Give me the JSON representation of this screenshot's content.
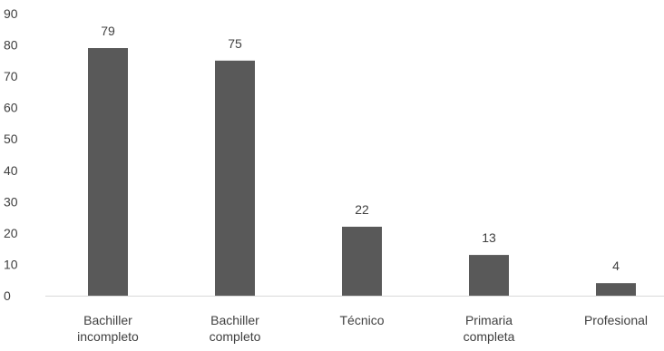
{
  "chart_data": {
    "type": "bar",
    "categories": [
      [
        "Bachiller",
        "incompleto"
      ],
      [
        "Bachiller",
        "completo"
      ],
      [
        "Técnico"
      ],
      [
        "Primaria",
        "completa"
      ],
      [
        "Profesional"
      ]
    ],
    "values": [
      79,
      75,
      22,
      13,
      4
    ],
    "data_labels": [
      "79",
      "75",
      "22",
      "13",
      "4"
    ],
    "ylim": [
      0,
      90
    ],
    "yticks": [
      0,
      10,
      20,
      30,
      40,
      50,
      60,
      70,
      80,
      90
    ],
    "bar_color": "#595959",
    "axis_color": "#d9d9d9",
    "text_color": "#404040",
    "grid": false,
    "legend": false
  }
}
